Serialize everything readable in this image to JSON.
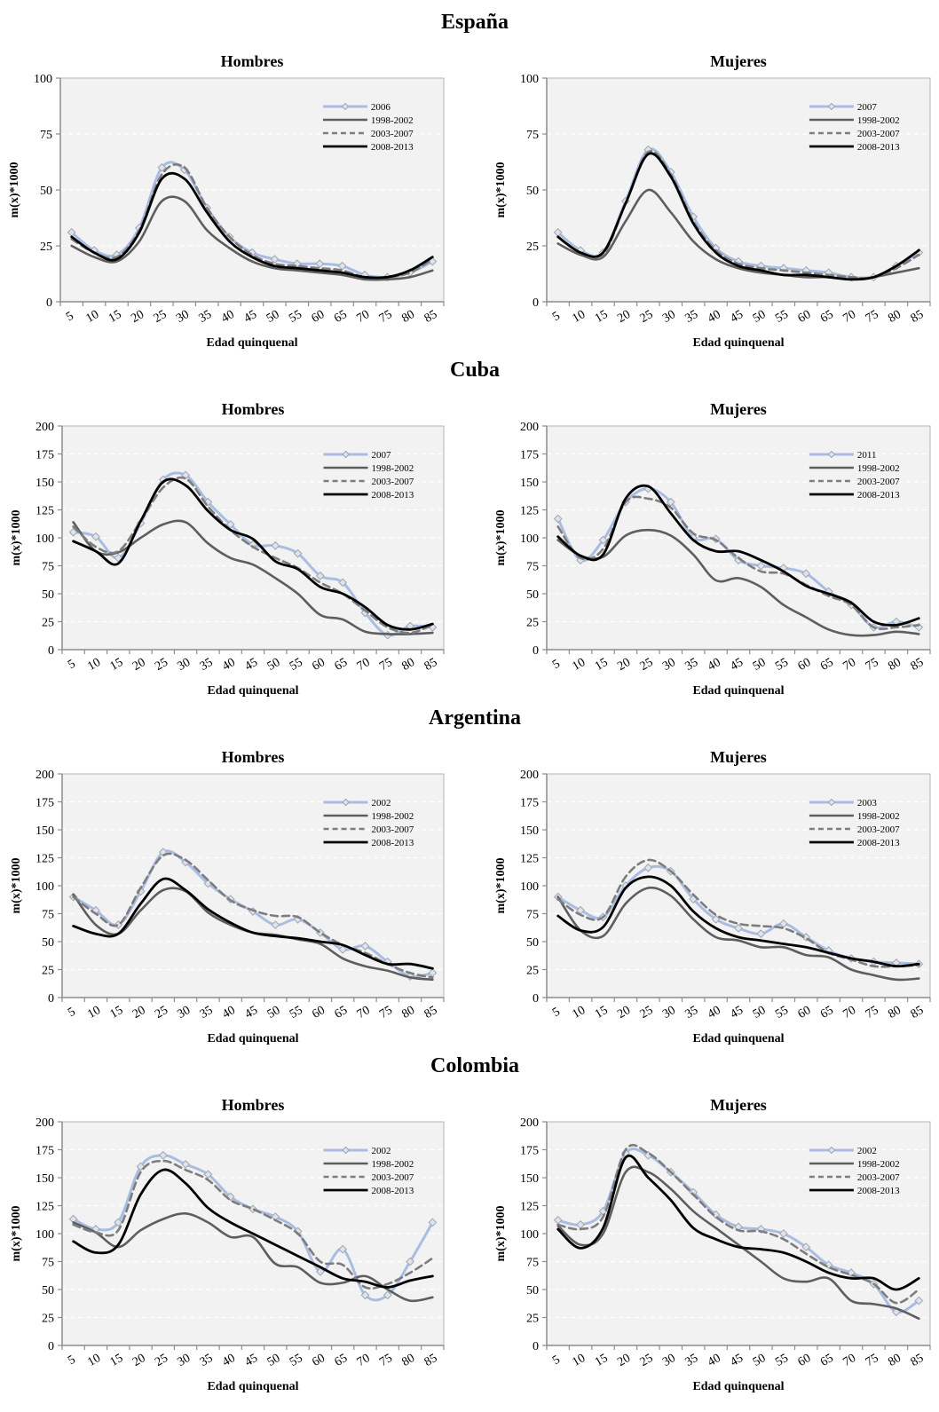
{
  "figure": {
    "countries": [
      "España",
      "Cuba",
      "Argentina",
      "Colombia"
    ]
  },
  "colors": {
    "year": "#a9bde3",
    "year_marker": "#9fa6b0",
    "s1998": "#5e5e5e",
    "s2003": "#7d7d7d",
    "s2008": "#000000",
    "plot_bg": "#f2f2f2",
    "grid": "#ffffff",
    "axis": "#8c8c8c"
  },
  "chart_data": [
    {
      "type": "line",
      "country": "España",
      "title": "Hombres",
      "xlabel": "Edad quinquenal",
      "ylabel": "m(x)*1000",
      "ylim": [
        0,
        100
      ],
      "yticks": [
        0,
        25,
        50,
        75,
        100
      ],
      "categories": [
        "5",
        "10",
        "15",
        "20",
        "25",
        "30",
        "35",
        "40",
        "45",
        "50",
        "55",
        "60",
        "65",
        "70",
        "75",
        "80",
        "85"
      ],
      "legend_position": "top-right",
      "series": [
        {
          "name": "2006",
          "values": [
            31,
            23,
            21,
            33,
            60,
            59,
            42,
            29,
            22,
            19,
            17,
            17,
            16,
            12,
            11,
            13,
            18
          ]
        },
        {
          "name": "1998-2002",
          "values": [
            25,
            20,
            18,
            27,
            45,
            45,
            32,
            24,
            18,
            15,
            14,
            13,
            12,
            10,
            10,
            11,
            14
          ]
        },
        {
          "name": "2003-2007",
          "values": [
            28,
            22,
            20,
            32,
            57,
            60,
            42,
            29,
            21,
            17,
            16,
            15,
            14,
            11,
            11,
            13,
            19
          ]
        },
        {
          "name": "2008-2013",
          "values": [
            29,
            22,
            19,
            31,
            55,
            55,
            40,
            27,
            20,
            16,
            15,
            14,
            13,
            11,
            11,
            14,
            20
          ]
        }
      ]
    },
    {
      "type": "line",
      "country": "España",
      "title": "Mujeres",
      "xlabel": "Edad quinquenal",
      "ylabel": "m(x)*1000",
      "ylim": [
        0,
        100
      ],
      "yticks": [
        0,
        25,
        50,
        75,
        100
      ],
      "categories": [
        "5",
        "10",
        "15",
        "20",
        "25",
        "30",
        "35",
        "40",
        "45",
        "50",
        "55",
        "60",
        "65",
        "70",
        "75",
        "80",
        "85"
      ],
      "legend_position": "top-right",
      "series": [
        {
          "name": "2007",
          "values": [
            31,
            23,
            22,
            45,
            68,
            58,
            38,
            24,
            18,
            16,
            15,
            14,
            13,
            11,
            11,
            16,
            22
          ]
        },
        {
          "name": "1998-2002",
          "values": [
            26,
            21,
            20,
            36,
            50,
            40,
            27,
            19,
            15,
            13,
            12,
            11,
            11,
            10,
            11,
            13,
            15
          ]
        },
        {
          "name": "2003-2007",
          "values": [
            29,
            22,
            21,
            44,
            67,
            57,
            36,
            23,
            17,
            15,
            14,
            13,
            12,
            11,
            11,
            15,
            21
          ]
        },
        {
          "name": "2008-2013",
          "values": [
            29,
            22,
            22,
            44,
            66,
            56,
            35,
            22,
            16,
            14,
            12,
            12,
            11,
            10,
            11,
            16,
            23
          ]
        }
      ]
    },
    {
      "type": "line",
      "country": "Cuba",
      "title": "Hombres",
      "xlabel": "Edad quinquenal",
      "ylabel": "m(x)*1000",
      "ylim": [
        0,
        200
      ],
      "yticks": [
        0,
        25,
        50,
        75,
        100,
        125,
        150,
        175,
        200
      ],
      "categories": [
        "5",
        "10",
        "15",
        "20",
        "25",
        "30",
        "35",
        "40",
        "45",
        "50",
        "55",
        "60",
        "65",
        "70",
        "75",
        "80",
        "85"
      ],
      "legend_position": "top-right",
      "series": [
        {
          "name": "2007",
          "values": [
            105,
            101,
            82,
            113,
            152,
            156,
            132,
            112,
            94,
            93,
            86,
            66,
            60,
            33,
            13,
            21,
            20
          ]
        },
        {
          "name": "1998-2002",
          "values": [
            114,
            88,
            87,
            100,
            112,
            114,
            95,
            82,
            76,
            64,
            50,
            31,
            27,
            16,
            14,
            14,
            15
          ]
        },
        {
          "name": "2003-2007",
          "values": [
            110,
            92,
            88,
            115,
            145,
            153,
            128,
            107,
            92,
            82,
            73,
            60,
            50,
            35,
            20,
            15,
            22
          ]
        },
        {
          "name": "2008-2013",
          "values": [
            97,
            88,
            77,
            115,
            150,
            147,
            124,
            107,
            99,
            79,
            72,
            56,
            50,
            38,
            22,
            18,
            23
          ]
        }
      ]
    },
    {
      "type": "line",
      "country": "Cuba",
      "title": "Mujeres",
      "xlabel": "Edad quinquenal",
      "ylabel": "m(x)*1000",
      "ylim": [
        0,
        200
      ],
      "yticks": [
        0,
        25,
        50,
        75,
        100,
        125,
        150,
        175,
        200
      ],
      "categories": [
        "5",
        "10",
        "15",
        "20",
        "25",
        "30",
        "35",
        "40",
        "45",
        "50",
        "55",
        "60",
        "65",
        "70",
        "75",
        "80",
        "85"
      ],
      "legend_position": "top-right",
      "series": [
        {
          "name": "2011",
          "values": [
            117,
            80,
            98,
            132,
            144,
            132,
            100,
            99,
            80,
            75,
            73,
            68,
            52,
            40,
            20,
            25,
            20
          ]
        },
        {
          "name": "1998-2002",
          "values": [
            98,
            84,
            83,
            102,
            107,
            102,
            85,
            62,
            64,
            56,
            40,
            29,
            18,
            13,
            13,
            16,
            14
          ]
        },
        {
          "name": "2003-2007",
          "values": [
            110,
            82,
            90,
            132,
            135,
            127,
            104,
            98,
            82,
            70,
            68,
            58,
            48,
            40,
            20,
            20,
            22
          ]
        },
        {
          "name": "2008-2013",
          "values": [
            101,
            84,
            85,
            135,
            146,
            122,
            98,
            88,
            88,
            80,
            70,
            57,
            50,
            42,
            25,
            22,
            28
          ]
        }
      ]
    },
    {
      "type": "line",
      "country": "Argentina",
      "title": "Hombres",
      "xlabel": "Edad quinquenal",
      "ylabel": "m(x)*1000",
      "ylim": [
        0,
        200
      ],
      "yticks": [
        0,
        25,
        50,
        75,
        100,
        125,
        150,
        175,
        200
      ],
      "categories": [
        "5",
        "10",
        "15",
        "20",
        "25",
        "30",
        "35",
        "40",
        "45",
        "50",
        "55",
        "60",
        "65",
        "70",
        "75",
        "80",
        "85"
      ],
      "legend_position": "top-right",
      "series": [
        {
          "name": "2002",
          "values": [
            90,
            78,
            65,
            95,
            130,
            121,
            102,
            88,
            77,
            65,
            70,
            58,
            43,
            46,
            32,
            19,
            22
          ]
        },
        {
          "name": "1998-2002",
          "values": [
            92,
            65,
            57,
            78,
            96,
            95,
            76,
            65,
            58,
            56,
            52,
            48,
            35,
            28,
            24,
            18,
            16
          ]
        },
        {
          "name": "2003-2007",
          "values": [
            90,
            75,
            65,
            98,
            127,
            123,
            105,
            87,
            78,
            73,
            72,
            58,
            47,
            40,
            30,
            22,
            18
          ]
        },
        {
          "name": "2008-2013",
          "values": [
            64,
            57,
            57,
            84,
            106,
            96,
            79,
            67,
            58,
            55,
            53,
            50,
            47,
            38,
            30,
            30,
            26
          ]
        }
      ]
    },
    {
      "type": "line",
      "country": "Argentina",
      "title": "Mujeres",
      "xlabel": "Edad quinquenal",
      "ylabel": "m(x)*1000",
      "ylim": [
        0,
        200
      ],
      "yticks": [
        0,
        25,
        50,
        75,
        100,
        125,
        150,
        175,
        200
      ],
      "categories": [
        "5",
        "10",
        "15",
        "20",
        "25",
        "30",
        "35",
        "40",
        "45",
        "50",
        "55",
        "60",
        "65",
        "70",
        "75",
        "80",
        "85"
      ],
      "legend_position": "top-right",
      "series": [
        {
          "name": "2003",
          "values": [
            90,
            78,
            72,
            100,
            116,
            113,
            88,
            70,
            62,
            57,
            66,
            54,
            42,
            35,
            32,
            31,
            30
          ]
        },
        {
          "name": "1998-2002",
          "values": [
            90,
            60,
            55,
            84,
            98,
            91,
            70,
            54,
            51,
            45,
            45,
            38,
            36,
            25,
            20,
            16,
            17
          ]
        },
        {
          "name": "2003-2007",
          "values": [
            88,
            74,
            72,
            108,
            123,
            113,
            92,
            74,
            66,
            64,
            62,
            53,
            40,
            34,
            28,
            28,
            29
          ]
        },
        {
          "name": "2008-2013",
          "values": [
            73,
            60,
            63,
            98,
            108,
            100,
            77,
            62,
            54,
            51,
            48,
            45,
            40,
            35,
            32,
            28,
            30
          ]
        }
      ]
    },
    {
      "type": "line",
      "country": "Colombia",
      "title": "Hombres",
      "xlabel": "Edad quinquenal",
      "ylabel": "m(x)*1000",
      "ylim": [
        0,
        200
      ],
      "yticks": [
        0,
        25,
        50,
        75,
        100,
        125,
        150,
        175,
        200
      ],
      "categories": [
        "5",
        "10",
        "15",
        "20",
        "25",
        "30",
        "35",
        "40",
        "45",
        "50",
        "55",
        "60",
        "65",
        "70",
        "75",
        "80",
        "85"
      ],
      "legend_position": "top-right",
      "series": [
        {
          "name": "2002",
          "values": [
            113,
            104,
            110,
            160,
            170,
            162,
            153,
            133,
            122,
            115,
            102,
            66,
            86,
            45,
            45,
            75,
            110
          ]
        },
        {
          "name": "1998-2002",
          "values": [
            110,
            101,
            88,
            103,
            113,
            118,
            110,
            97,
            97,
            73,
            70,
            56,
            56,
            62,
            50,
            40,
            43
          ]
        },
        {
          "name": "2003-2007",
          "values": [
            108,
            101,
            103,
            155,
            165,
            157,
            148,
            130,
            122,
            112,
            100,
            75,
            72,
            52,
            55,
            65,
            78
          ]
        },
        {
          "name": "2008-2013",
          "values": [
            93,
            83,
            90,
            135,
            157,
            145,
            123,
            110,
            100,
            90,
            80,
            70,
            60,
            57,
            52,
            58,
            62
          ]
        }
      ]
    },
    {
      "type": "line",
      "country": "Colombia",
      "title": "Mujeres",
      "xlabel": "Edad quinquenal",
      "ylabel": "m(x)*1000",
      "ylim": [
        0,
        200
      ],
      "yticks": [
        0,
        25,
        50,
        75,
        100,
        125,
        150,
        175,
        200
      ],
      "categories": [
        "5",
        "10",
        "15",
        "20",
        "25",
        "30",
        "35",
        "40",
        "45",
        "50",
        "55",
        "60",
        "65",
        "70",
        "75",
        "80",
        "85"
      ],
      "legend_position": "top-right",
      "series": [
        {
          "name": "2002",
          "values": [
            112,
            108,
            120,
            172,
            170,
            155,
            137,
            117,
            106,
            104,
            100,
            88,
            72,
            65,
            55,
            30,
            40
          ]
        },
        {
          "name": "1998-2002",
          "values": [
            107,
            90,
            100,
            155,
            155,
            140,
            120,
            105,
            90,
            75,
            60,
            57,
            60,
            40,
            37,
            33,
            24
          ]
        },
        {
          "name": "2003-2007",
          "values": [
            108,
            104,
            115,
            175,
            172,
            155,
            135,
            115,
            103,
            102,
            95,
            82,
            70,
            63,
            55,
            38,
            50
          ]
        },
        {
          "name": "2008-2013",
          "values": [
            104,
            87,
            105,
            168,
            150,
            130,
            105,
            95,
            88,
            86,
            83,
            75,
            65,
            60,
            60,
            50,
            60
          ]
        }
      ]
    }
  ]
}
